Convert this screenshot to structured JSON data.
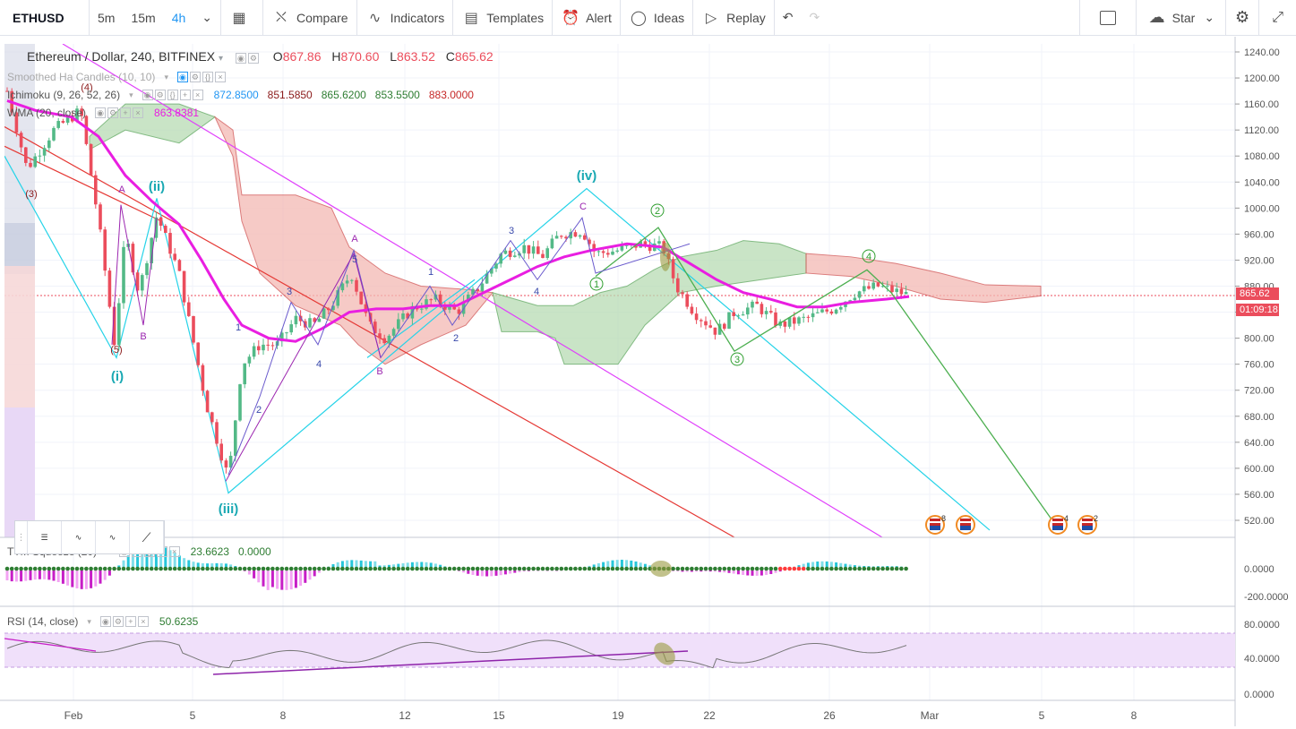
{
  "toolbar": {
    "symbol": "ETHUSD",
    "intervals": [
      "5m",
      "15m",
      "4h"
    ],
    "active_interval": "4h",
    "compare": "Compare",
    "indicators": "Indicators",
    "templates": "Templates",
    "alert": "Alert",
    "ideas": "Ideas",
    "replay": "Replay",
    "star": "Star",
    "icons": [
      "candles-icon",
      "compare-icon",
      "indicators-icon",
      "templates-icon",
      "alert-icon",
      "ideas-icon",
      "replay-icon",
      "undo-icon",
      "redo-icon",
      "layout-icon",
      "cloud-icon",
      "gear-icon",
      "fullscreen-icon"
    ]
  },
  "main_legend": {
    "title": "Ethereum / Dollar, 240, BITFINEX",
    "o_label": "O",
    "o": "867.86",
    "h_label": "H",
    "h": "870.60",
    "l_label": "L",
    "l": "863.52",
    "c_label": "C",
    "c": "865.62"
  },
  "ind_ha": {
    "name": "Smoothed Ha Candles (10, 10)"
  },
  "ind_ichimoku": {
    "name": "Ichimoku (9, 26, 52, 26)",
    "v1": "872.8500",
    "v2": "851.5850",
    "v3": "865.6200",
    "v4": "853.5500",
    "v5": "883.0000"
  },
  "ind_wma": {
    "name": "WMA (20, close)",
    "value": "863.8381"
  },
  "ind_ttm": {
    "name": "TTM Squeeze (20)",
    "v1": "23.6623",
    "v2": "0.0000"
  },
  "ind_rsi": {
    "name": "RSI (14, close)",
    "value": "50.6235"
  },
  "price_axis": {
    "ticks": [
      "1240.00",
      "1200.00",
      "1160.00",
      "1120.00",
      "1080.00",
      "1040.00",
      "1000.00",
      "960.00",
      "920.00",
      "880.00",
      "840.00",
      "800.00",
      "760.00",
      "720.00",
      "680.00",
      "640.00",
      "600.00",
      "560.00",
      "520.00"
    ],
    "last_price": "865.62",
    "countdown": "01:09:18"
  },
  "ttm_axis": [
    "0.0000",
    "-200.0000"
  ],
  "rsi_axis": [
    "80.0000",
    "40.0000",
    "0.0000"
  ],
  "time_axis": [
    "Feb",
    "5",
    "8",
    "12",
    "15",
    "19",
    "22",
    "26",
    "Mar",
    "5",
    "8"
  ],
  "wave_labels": [
    "(i)",
    "(ii)",
    "(iii)",
    "(iv)",
    "(5)",
    "(3)",
    "(4)",
    "A",
    "B",
    "C",
    "1",
    "2",
    "3",
    "4",
    "5"
  ],
  "events": [
    {
      "count": "8"
    },
    {
      "count": ""
    },
    {
      "count": "4"
    },
    {
      "count": "2"
    }
  ],
  "colors": {
    "up": "#53b987",
    "down": "#eb4d5c",
    "wma": "#e91ee1",
    "cyan": "#26d3e8",
    "cloud_green": "#b7dcb4",
    "cloud_red": "#f4b9b4",
    "rsi_bg": "#f0e0fa"
  }
}
